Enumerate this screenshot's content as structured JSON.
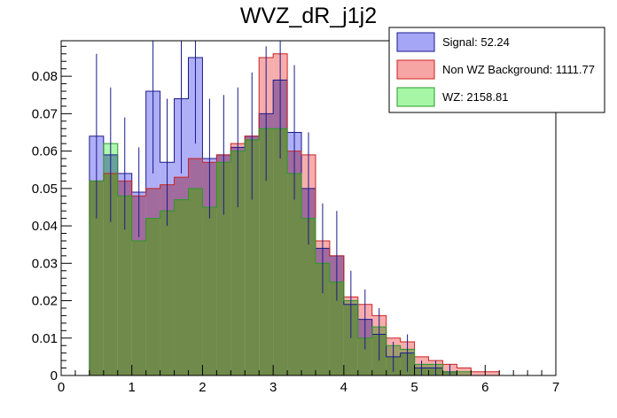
{
  "chart_data": {
    "type": "bar",
    "title": "WVZ_dR_j1j2",
    "xlabel": "",
    "ylabel": "",
    "xlim": [
      0,
      7
    ],
    "ylim": [
      0,
      0.0895
    ],
    "bin_width": 0.2,
    "x_start": 0.4,
    "x_ticks": [
      "0",
      "1",
      "2",
      "3",
      "4",
      "5",
      "6",
      "7"
    ],
    "y_ticks": [
      "0",
      "0.01",
      "0.02",
      "0.03",
      "0.04",
      "0.05",
      "0.06",
      "0.07",
      "0.08"
    ],
    "y_tick_values": [
      0,
      0.01,
      0.02,
      0.03,
      0.04,
      0.05,
      0.06,
      0.07,
      0.08
    ],
    "legend_position": "top-right",
    "series": [
      {
        "name": "Signal",
        "legend": "Signal: 52.24",
        "fill": "#a6a6f6",
        "edge": "#1a1a8c",
        "values": [
          0.064,
          0.059,
          0.054,
          0.049,
          0.076,
          0.057,
          0.074,
          0.085,
          0.058,
          0.059,
          0.061,
          0.064,
          0.07,
          0.079,
          0.065,
          0.05,
          0.034,
          0.032,
          0.019,
          0.015,
          0.011,
          0.005,
          0.006,
          0.002,
          0.002,
          0.001,
          0.0,
          0.0,
          0.0
        ],
        "errors": [
          0.022,
          0.018,
          0.015,
          0.012,
          0.022,
          0.017,
          0.02,
          0.023,
          0.016,
          0.016,
          0.016,
          0.017,
          0.018,
          0.021,
          0.018,
          0.015,
          0.012,
          0.012,
          0.009,
          0.008,
          0.007,
          0.004,
          0.005,
          0.002,
          0.002,
          0.002,
          0.0,
          0.0,
          0.0
        ]
      },
      {
        "name": "Non WZ Background",
        "legend": "Non WZ Background: 1111.77",
        "fill": "#f7a4a4",
        "edge": "#cc2222",
        "values": [
          0.052,
          0.054,
          0.052,
          0.048,
          0.05,
          0.051,
          0.053,
          0.058,
          0.057,
          0.059,
          0.062,
          0.064,
          0.085,
          0.086,
          0.06,
          0.059,
          0.036,
          0.032,
          0.021,
          0.019,
          0.016,
          0.01,
          0.009,
          0.005,
          0.004,
          0.003,
          0.002,
          0.001,
          0.001
        ],
        "errors": []
      },
      {
        "name": "WZ",
        "legend": "WZ: 2158.81",
        "fill": "#a6f6a6",
        "edge": "#2a9a2a",
        "values": [
          0.052,
          0.062,
          0.048,
          0.036,
          0.042,
          0.044,
          0.047,
          0.05,
          0.045,
          0.057,
          0.06,
          0.063,
          0.066,
          0.066,
          0.054,
          0.042,
          0.03,
          0.025,
          0.02,
          0.01,
          0.013,
          0.008,
          0.007,
          0.003,
          0.003,
          0.001,
          0.001,
          0.0,
          0.0
        ],
        "errors": []
      }
    ]
  }
}
